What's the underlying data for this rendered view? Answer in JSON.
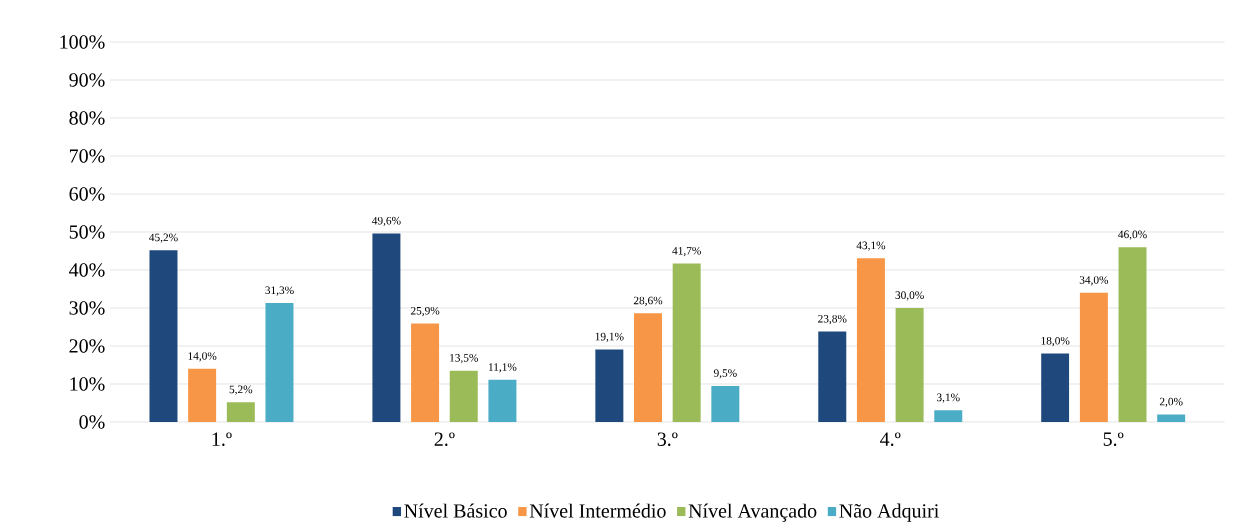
{
  "chart_data": {
    "type": "bar",
    "categories": [
      "1.º",
      "2.º",
      "3.º",
      "4.º",
      "5.º"
    ],
    "series": [
      {
        "name": "Nível Básico",
        "color": "#1f497d",
        "values": [
          45.2,
          49.6,
          19.1,
          23.8,
          18.0
        ],
        "value_labels": [
          "45,2%",
          "49,6%",
          "19,1%",
          "23,8%",
          "18,0%"
        ]
      },
      {
        "name": "Nível Intermédio",
        "color": "#f79646",
        "values": [
          14.0,
          25.9,
          28.6,
          43.1,
          34.0
        ],
        "value_labels": [
          "14,0%",
          "25,9%",
          "28,6%",
          "43,1%",
          "34,0%"
        ]
      },
      {
        "name": "Nível Avançado",
        "color": "#9bbb59",
        "values": [
          5.2,
          13.5,
          41.7,
          30.0,
          46.0
        ],
        "value_labels": [
          "5,2%",
          "13,5%",
          "41,7%",
          "30,0%",
          "46,0%"
        ]
      },
      {
        "name": "Não Adquiri",
        "color": "#4bacc6",
        "values": [
          31.3,
          11.1,
          9.5,
          3.1,
          2.0
        ],
        "value_labels": [
          "31,3%",
          "11,1%",
          "9,5%",
          "3,1%",
          "2,0%"
        ]
      }
    ],
    "ylim": [
      0,
      100
    ],
    "yticks": [
      {
        "value": 0,
        "label": "0%"
      },
      {
        "value": 10,
        "label": "10%"
      },
      {
        "value": 20,
        "label": "20%"
      },
      {
        "value": 30,
        "label": "30%"
      },
      {
        "value": 40,
        "label": "40%"
      },
      {
        "value": 50,
        "label": "50%"
      },
      {
        "value": 60,
        "label": "60%"
      },
      {
        "value": 70,
        "label": "70%"
      },
      {
        "value": 80,
        "label": "80%"
      },
      {
        "value": 90,
        "label": "90%"
      },
      {
        "value": 100,
        "label": "100%"
      }
    ],
    "grid": "y",
    "legend": "bottom"
  }
}
